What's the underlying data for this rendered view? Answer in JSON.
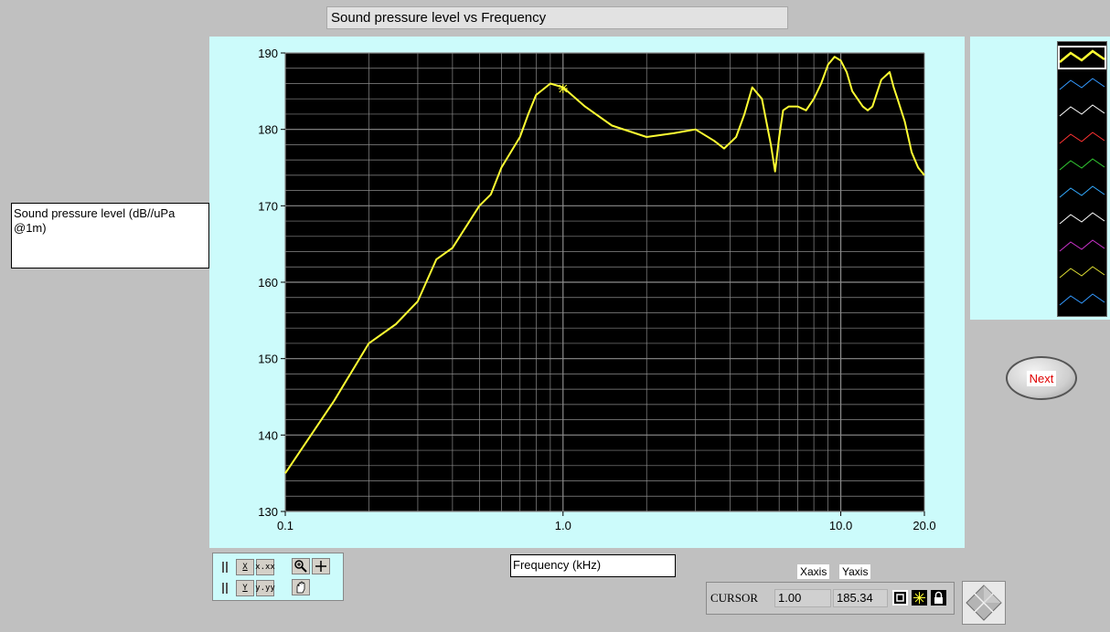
{
  "title": "Sound pressure level vs Frequency",
  "ylabel": "Sound pressure level (dB//uPa @1m)",
  "xlabel": "Frequency (kHz)",
  "next_label": "Next",
  "cursor": {
    "name": "CURSOR",
    "x": "1.00",
    "y": "185.34",
    "x_header": "Xaxis",
    "y_header": "Yaxis"
  },
  "palette": {
    "x_scale": "X",
    "y_scale": "Y",
    "x_format": "x.xx",
    "y_format": "y.yy"
  },
  "legend_colors": [
    "#ffff33",
    "#3399ff",
    "#ffffff",
    "#ff3333",
    "#33cc33",
    "#33aaff",
    "#ffffff",
    "#cc33cc",
    "#dddd33",
    "#3399ff"
  ],
  "colors": {
    "plot_bg": "#000000",
    "grid": "#8c8c8c",
    "trace": "#ffff33",
    "panel": "#ccfbfb"
  },
  "chart_data": {
    "type": "line",
    "xlabel": "Frequency (kHz)",
    "ylabel": "Sound pressure level (dB//uPa @1m)",
    "x_scale": "log",
    "xlim": [
      0.1,
      20.0
    ],
    "ylim": [
      130,
      190
    ],
    "x_ticks": [
      "0.1",
      "1.0",
      "10.0",
      "20.0"
    ],
    "y_ticks": [
      "130",
      "140",
      "150",
      "160",
      "170",
      "180",
      "190"
    ],
    "cursor_point": [
      1.0,
      185.34
    ],
    "series": [
      {
        "x": [
          0.1,
          0.15,
          0.2,
          0.25,
          0.3,
          0.35,
          0.4,
          0.5,
          0.55,
          0.6,
          0.7,
          0.75,
          0.8,
          0.9,
          1.0,
          1.2,
          1.5,
          2.0,
          2.5,
          3.0,
          3.5,
          3.8,
          4.2,
          4.5,
          4.8,
          5.2,
          5.6,
          5.8,
          6.0,
          6.2,
          6.5,
          7.0,
          7.5,
          8.0,
          8.5,
          9.0,
          9.5,
          10.0,
          10.5,
          11.0,
          12.0,
          12.5,
          13.0,
          14.0,
          15.0,
          15.5,
          16.0,
          17.0,
          18.0,
          19.0,
          20.0
        ],
        "y": [
          135,
          144.5,
          152,
          154.5,
          157.5,
          163,
          164.5,
          170,
          171.5,
          175,
          179,
          182,
          184.5,
          186,
          185.5,
          183,
          180.5,
          179,
          179.5,
          180,
          178.5,
          177.5,
          179,
          182,
          185.5,
          184,
          178,
          174.5,
          179,
          182.5,
          183,
          183,
          182.5,
          184,
          186,
          188.5,
          189.5,
          189,
          187.5,
          185,
          183,
          182.5,
          183,
          186.5,
          187.5,
          185.5,
          184,
          181,
          177,
          175,
          174
        ]
      }
    ]
  }
}
